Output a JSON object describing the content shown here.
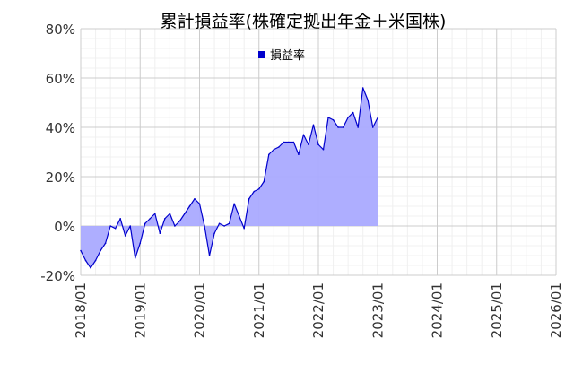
{
  "chart_data": {
    "type": "area",
    "title": "累計損益率(株確定拠出年金＋米国株)",
    "xlabel": "",
    "ylabel": "",
    "legend": {
      "position": "top-center",
      "label": "損益率"
    },
    "grid": true,
    "colors": {
      "line": "#0000cc",
      "fill": "#aaaaff",
      "legend_marker": "#0000cc",
      "grid": "#e6e6e6",
      "axis": "#cccccc"
    },
    "xlim": [
      "2018/01",
      "2026/01"
    ],
    "ylim": [
      -20,
      80
    ],
    "x_ticks": [
      "2018/01",
      "2019/01",
      "2020/01",
      "2021/01",
      "2022/01",
      "2023/01",
      "2024/01",
      "2025/01",
      "2026/01"
    ],
    "y_ticks": [
      "-20%",
      "0%",
      "20%",
      "40%",
      "60%",
      "80%"
    ],
    "series": [
      {
        "name": "損益率",
        "x": [
          "2018/01",
          "2018/02",
          "2018/03",
          "2018/04",
          "2018/05",
          "2018/06",
          "2018/07",
          "2018/08",
          "2018/09",
          "2018/10",
          "2018/11",
          "2018/12",
          "2019/01",
          "2019/02",
          "2019/03",
          "2019/04",
          "2019/05",
          "2019/06",
          "2019/07",
          "2019/08",
          "2019/09",
          "2019/10",
          "2019/11",
          "2019/12",
          "2020/01",
          "2020/02",
          "2020/03",
          "2020/04",
          "2020/05",
          "2020/06",
          "2020/07",
          "2020/08",
          "2020/09",
          "2020/10",
          "2020/11",
          "2020/12",
          "2021/01",
          "2021/02",
          "2021/03",
          "2021/04",
          "2021/05",
          "2021/06",
          "2021/07",
          "2021/08",
          "2021/09",
          "2021/10",
          "2021/11",
          "2021/12",
          "2022/01",
          "2022/02",
          "2022/03",
          "2022/04",
          "2022/05",
          "2022/06",
          "2022/07",
          "2022/08",
          "2022/09",
          "2022/10",
          "2022/11",
          "2022/12",
          "2023/01"
        ],
        "y": [
          -10,
          -14,
          -17,
          -14,
          -10,
          -7,
          0,
          -1,
          3,
          -4,
          0,
          -13,
          -7,
          1,
          3,
          5,
          -3,
          3,
          5,
          0,
          2,
          5,
          8,
          11,
          9,
          0,
          -12,
          -3,
          1,
          0,
          1,
          9,
          4,
          -1,
          11,
          14,
          15,
          18,
          29,
          31,
          32,
          34,
          34,
          34,
          29,
          37,
          33,
          41,
          33,
          31,
          44,
          43,
          40,
          40,
          44,
          46,
          40,
          56,
          51,
          40,
          44
        ]
      }
    ]
  }
}
